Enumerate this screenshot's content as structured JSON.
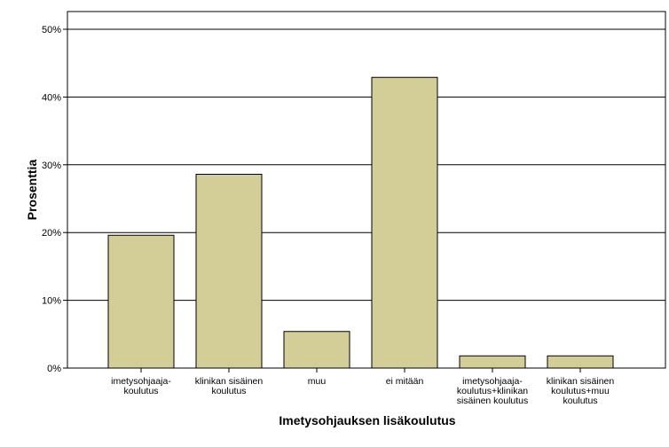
{
  "chart_data": {
    "type": "bar",
    "xlabel": "Imetysohjauksen lisäkoulutus",
    "ylabel": "Prosenttia",
    "ylim": [
      0,
      50
    ],
    "yticks": [
      "0%",
      "10%",
      "20%",
      "30%",
      "40%",
      "50%"
    ],
    "grid": true,
    "categories": [
      [
        "imetysohjaaja-",
        "koulutus"
      ],
      [
        "klinikan sisäinen",
        "koulutus"
      ],
      [
        "muu"
      ],
      [
        "ei mitään"
      ],
      [
        "imetysohjaaja-",
        "koulutus+klinikan",
        "sisäinen koulutus"
      ],
      [
        "klinikan sisäinen",
        "koulutus+muu",
        "koulutus"
      ]
    ],
    "values": [
      19.6,
      28.6,
      5.4,
      42.9,
      1.8,
      1.8
    ],
    "bar_color": "#d3ce97",
    "bar_stroke": "#000000",
    "grid_color": "#000000"
  }
}
